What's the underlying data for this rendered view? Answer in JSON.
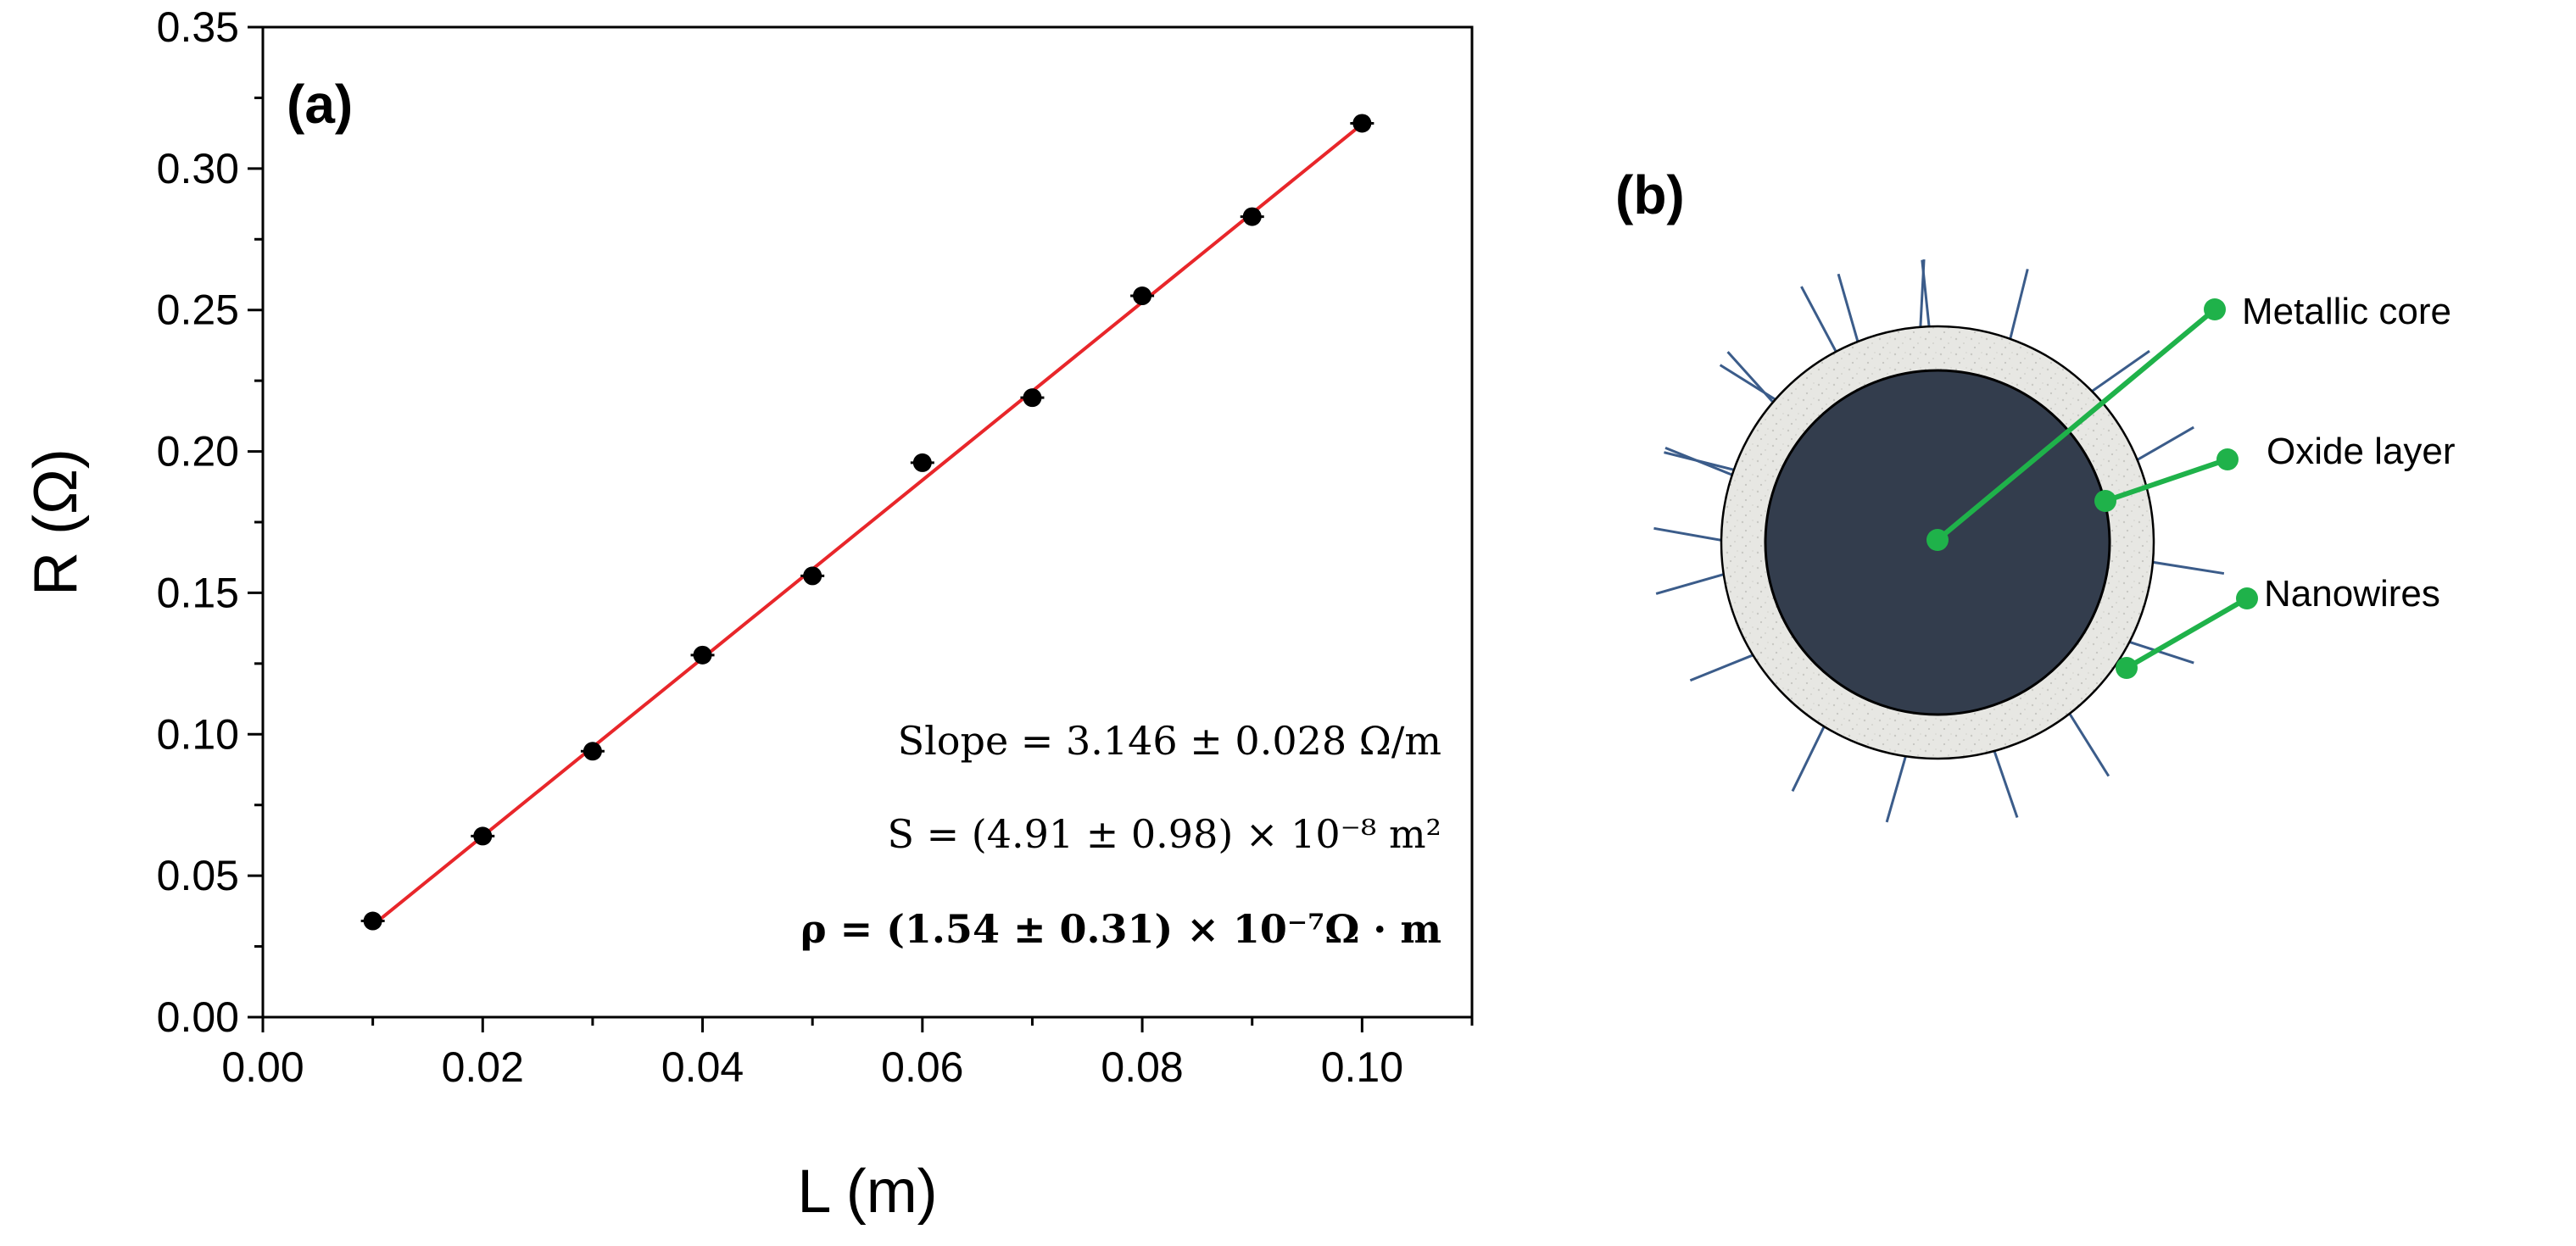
{
  "panel_a": {
    "label": "(a)",
    "equations": {
      "slope": "Slope = 3.146 ± 0.028 Ω/m",
      "area": "S = (4.91 ± 0.98) × 10⁻⁸ m²",
      "rho": "ρ = (1.54 ± 0.31) × 10⁻⁷Ω · m"
    }
  },
  "panel_b": {
    "label": "(b)",
    "callouts": {
      "core": "Metallic core",
      "oxide": "Oxide layer",
      "nanowires": "Nanowires"
    },
    "colors": {
      "core": "#333d4d",
      "oxide": "#e6e6e2",
      "nanowire": "#3b5c8a",
      "callout": "#1fb24a"
    }
  },
  "chart_data": {
    "type": "scatter",
    "xlabel": "L (m)",
    "ylabel": "R (Ω)",
    "xlim": [
      0.0,
      0.11
    ],
    "ylim": [
      0.0,
      0.35
    ],
    "x_ticks": [
      "0.00",
      "0.02",
      "0.04",
      "0.06",
      "0.08",
      "0.10"
    ],
    "y_ticks": [
      "0.00",
      "0.05",
      "0.10",
      "0.15",
      "0.20",
      "0.25",
      "0.30",
      "0.35"
    ],
    "series": [
      {
        "kind": "points",
        "x": [
          0.01,
          0.02,
          0.03,
          0.04,
          0.05,
          0.06,
          0.07,
          0.08,
          0.09,
          0.1
        ],
        "y": [
          0.034,
          0.064,
          0.094,
          0.128,
          0.156,
          0.196,
          0.219,
          0.255,
          0.283,
          0.316
        ],
        "color": "#000000"
      },
      {
        "kind": "fit-line",
        "x": [
          0.01,
          0.1
        ],
        "y": [
          0.0325,
          0.3157
        ],
        "color": "#e8262a"
      }
    ],
    "grid": false
  }
}
